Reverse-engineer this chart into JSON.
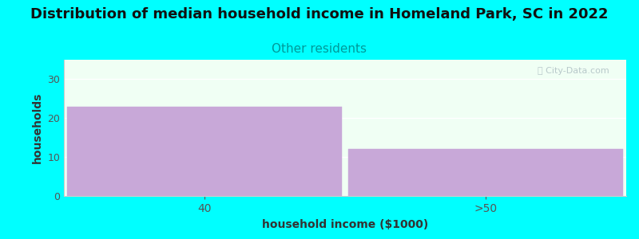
{
  "title": "Distribution of median household income in Homeland Park, SC in 2022",
  "subtitle": "Other residents",
  "subtitle_color": "#009999",
  "xlabel": "household income ($1000)",
  "ylabel": "households",
  "background_color": "#00ffff",
  "plot_bg_color": "#f0fff4",
  "bar_color": "#c8a8d8",
  "bar_edge_color": "#c8a8d8",
  "categories": [
    "40",
    ">50"
  ],
  "values": [
    23,
    12
  ],
  "ylim": [
    0,
    35
  ],
  "yticks": [
    0,
    10,
    20,
    30
  ],
  "title_fontsize": 13,
  "subtitle_fontsize": 11,
  "label_fontsize": 10,
  "watermark": "ⓘ City-Data.com",
  "watermark_color": "#aabbc0"
}
